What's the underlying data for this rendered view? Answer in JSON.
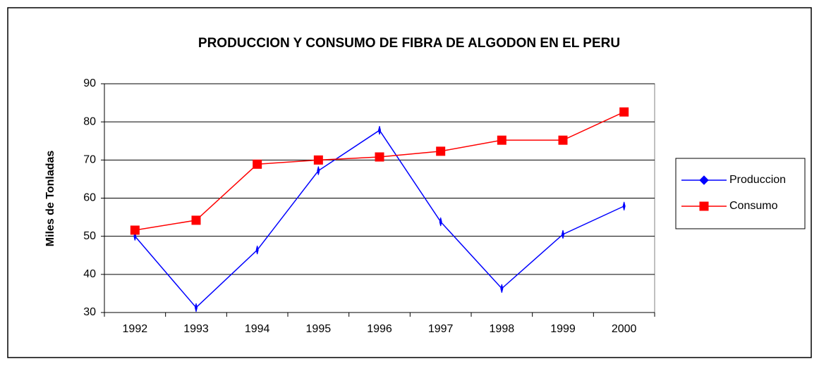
{
  "chart_data": {
    "type": "line",
    "title": "PRODUCCION Y CONSUMO DE FIBRA DE ALGODON EN EL PERU",
    "y_label": "Miles de Tonladas",
    "categories": [
      "1992",
      "1993",
      "1994",
      "1995",
      "1996",
      "1997",
      "1998",
      "1999",
      "2000"
    ],
    "series": [
      {
        "name": "Produccion",
        "color": "#0000ff",
        "marker": "diamond",
        "values": [
          50,
          31.3,
          46.4,
          67.2,
          77.8,
          53.8,
          36.3,
          50.5,
          57.9
        ]
      },
      {
        "name": "Consumo",
        "color": "#ff0000",
        "marker": "square",
        "values": [
          51.6,
          54.2,
          68.9,
          70.0,
          70.8,
          72.3,
          75.2,
          75.2,
          82.6
        ]
      }
    ],
    "ylim": [
      30,
      90
    ],
    "yticks": [
      30,
      40,
      50,
      60,
      70,
      80,
      90
    ],
    "grid": true,
    "legend": "right"
  }
}
